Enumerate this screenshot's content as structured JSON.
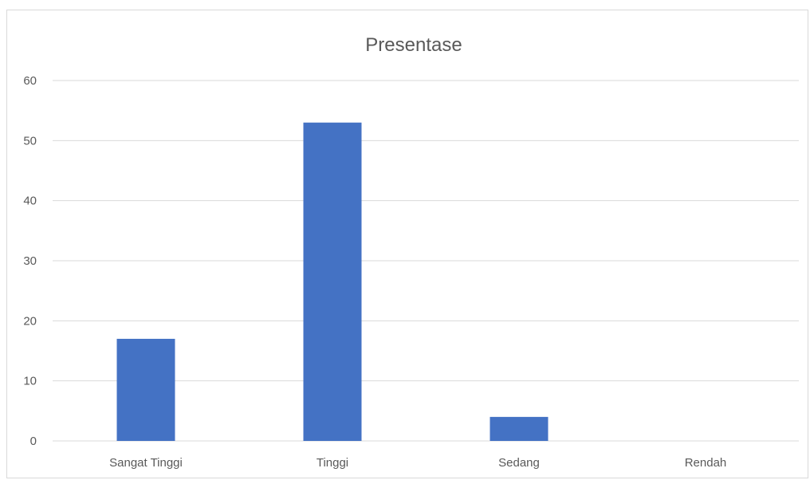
{
  "chart_data": {
    "type": "bar",
    "title": "Presentase",
    "categories": [
      "Sangat Tinggi",
      "Tinggi",
      "Sedang",
      "Rendah"
    ],
    "values": [
      17,
      53,
      4,
      0
    ],
    "xlabel": "",
    "ylabel": "",
    "ylim": [
      0,
      60
    ],
    "yticks": [
      0,
      10,
      20,
      30,
      40,
      50,
      60
    ],
    "grid": true,
    "legend": "none",
    "bar_color": "#4472C4"
  }
}
